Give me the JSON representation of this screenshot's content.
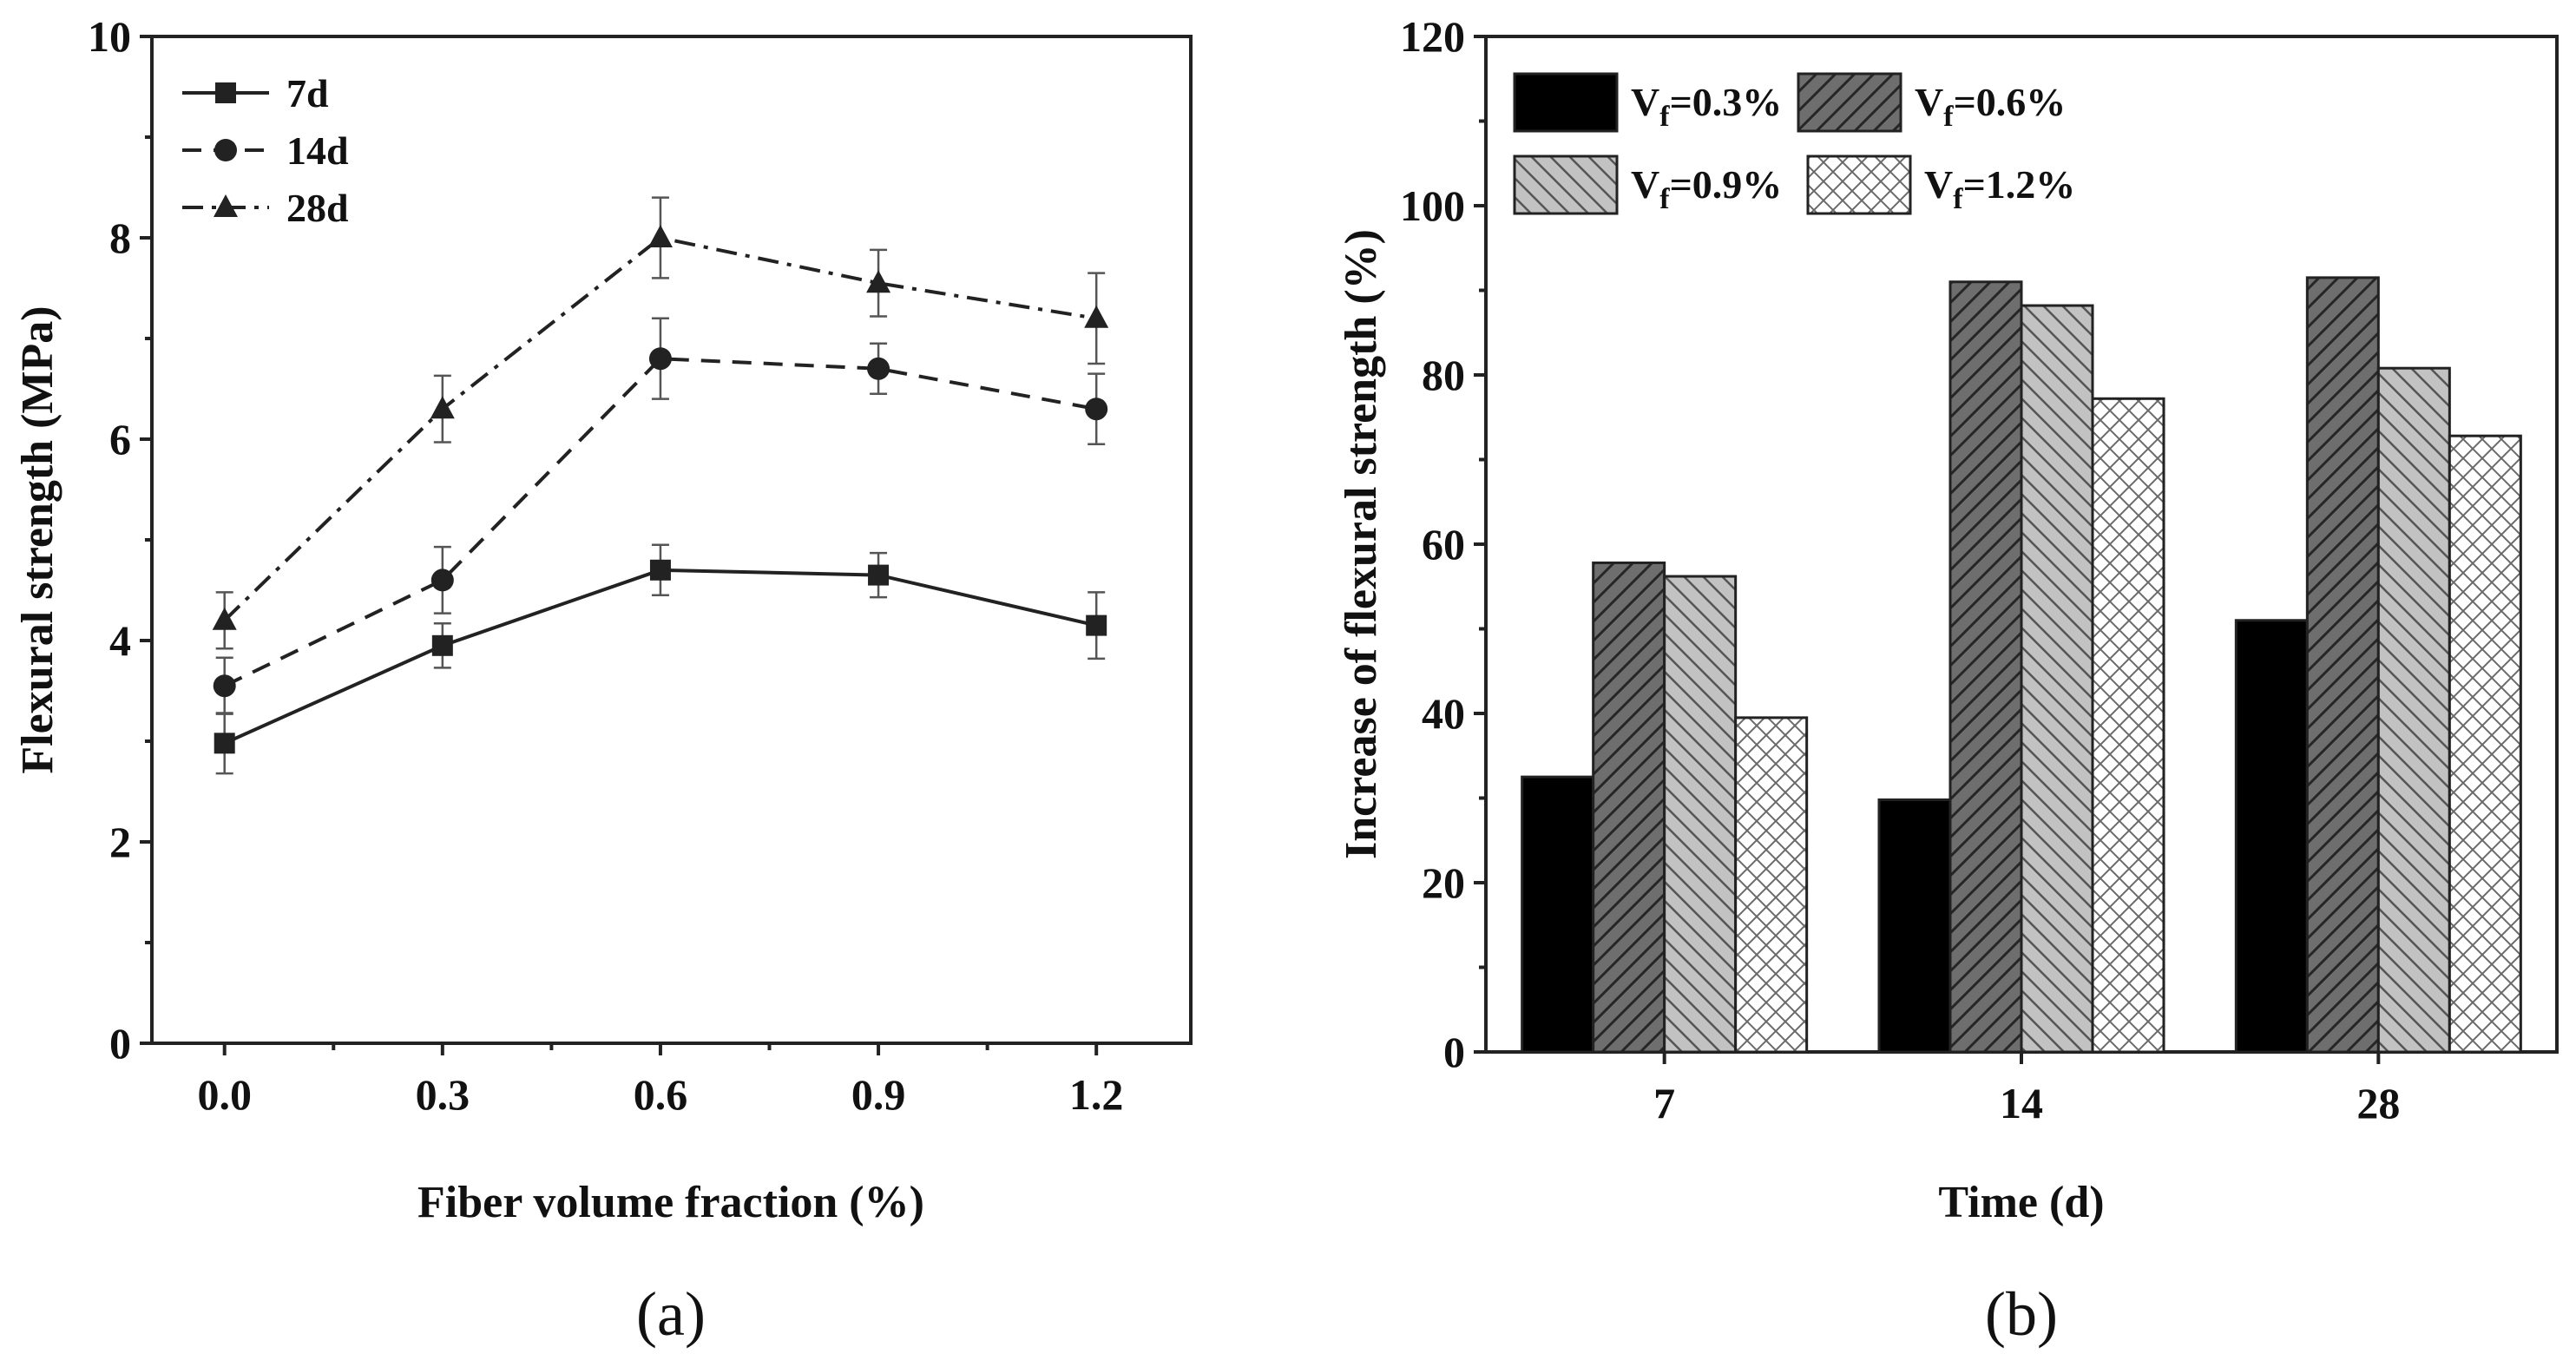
{
  "chart_data": [
    {
      "type": "line",
      "panel_label": "(a)",
      "xlabel": "Fiber volume fraction (%)",
      "ylabel": "Flexural strength (MPa)",
      "x": [
        0.0,
        0.3,
        0.6,
        0.9,
        1.2
      ],
      "x_tick_labels": [
        "0.0",
        "0.3",
        "0.6",
        "0.9",
        "1.2"
      ],
      "xlim": [
        -0.1,
        1.33
      ],
      "ylim": [
        0,
        10
      ],
      "y_ticks": [
        0,
        2,
        4,
        6,
        8,
        10
      ],
      "y_tick_labels": [
        "0",
        "2",
        "4",
        "6",
        "8",
        "10"
      ],
      "legend_position": "top-left",
      "series": [
        {
          "name": "7d",
          "marker": "square",
          "line": "solid",
          "values": [
            2.98,
            3.95,
            4.7,
            4.65,
            4.15
          ],
          "errors": [
            0.3,
            0.22,
            0.25,
            0.22,
            0.33
          ]
        },
        {
          "name": "14d",
          "marker": "circle",
          "line": "dashed",
          "values": [
            3.55,
            4.6,
            6.8,
            6.7,
            6.3
          ],
          "errors": [
            0.28,
            0.33,
            0.4,
            0.25,
            0.35
          ]
        },
        {
          "name": "28d",
          "marker": "triangle",
          "line": "dashdot",
          "values": [
            4.2,
            6.3,
            8.0,
            7.55,
            7.2
          ],
          "errors": [
            0.28,
            0.33,
            0.4,
            0.33,
            0.45
          ]
        }
      ]
    },
    {
      "type": "bar",
      "panel_label": "(b)",
      "xlabel": "Time (d)",
      "ylabel": "Increase of flexural strength (%)",
      "categories": [
        "7",
        "14",
        "28"
      ],
      "ylim": [
        0,
        120
      ],
      "y_ticks": [
        0,
        20,
        40,
        60,
        80,
        100,
        120
      ],
      "y_tick_labels": [
        "0",
        "20",
        "40",
        "60",
        "80",
        "100",
        "120"
      ],
      "legend_position": "top-left",
      "series": [
        {
          "name_main": "V",
          "name_sub": "f",
          "name_rest": "=0.3%",
          "fill": "solid-black",
          "values": [
            32.5,
            29.8,
            51.0
          ]
        },
        {
          "name_main": "V",
          "name_sub": "f",
          "name_rest": "=0.6%",
          "fill": "dark-gray-hatch",
          "values": [
            57.8,
            91.0,
            91.5
          ]
        },
        {
          "name_main": "V",
          "name_sub": "f",
          "name_rest": "=0.9%",
          "fill": "light-gray-backhatch",
          "values": [
            56.2,
            88.2,
            80.8
          ]
        },
        {
          "name_main": "V",
          "name_sub": "f",
          "name_rest": "=1.2%",
          "fill": "white-crosshatch",
          "values": [
            39.5,
            77.2,
            72.8
          ]
        }
      ]
    }
  ]
}
